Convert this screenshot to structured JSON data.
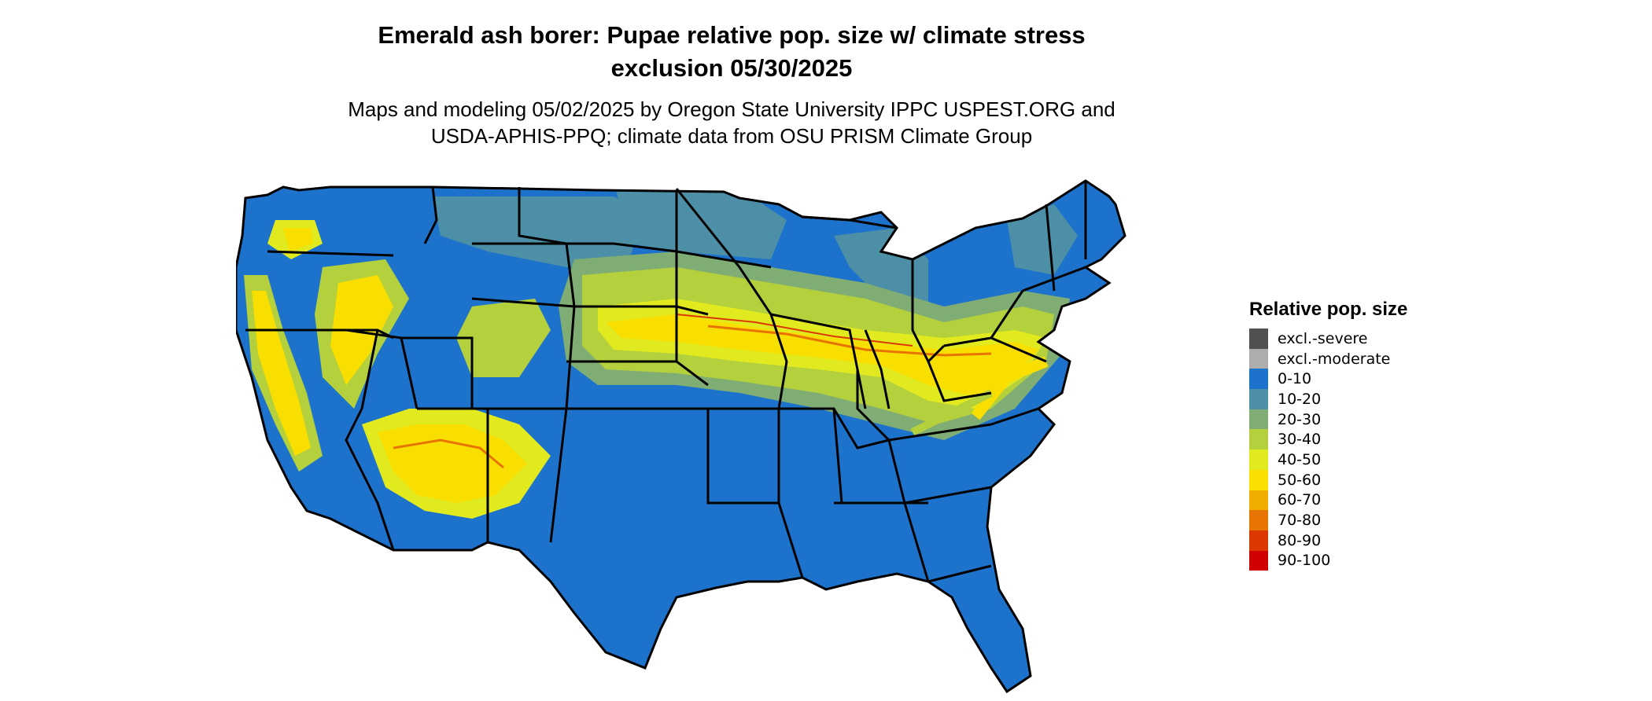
{
  "title": {
    "line1": "Emerald ash borer: Pupae relative pop. size w/ climate stress",
    "line2": "exclusion 05/30/2025"
  },
  "subtitle": {
    "line1": "Maps and modeling 05/02/2025 by Oregon State University IPPC USPEST.ORG and",
    "line2": "USDA-APHIS-PPQ; climate data from OSU PRISM Climate Group"
  },
  "legend": {
    "title": "Relative pop. size",
    "items": [
      {
        "label": "excl.-severe",
        "color": "#505050"
      },
      {
        "label": "excl.-moderate",
        "color": "#adadad"
      },
      {
        "label": "0-10",
        "color": "#1d73cc"
      },
      {
        "label": "10-20",
        "color": "#4c8fa6"
      },
      {
        "label": "20-30",
        "color": "#7fad74"
      },
      {
        "label": "30-40",
        "color": "#b4d03c"
      },
      {
        "label": "40-50",
        "color": "#e1ea1e"
      },
      {
        "label": "50-60",
        "color": "#f9df00"
      },
      {
        "label": "60-70",
        "color": "#f0ad00"
      },
      {
        "label": "70-80",
        "color": "#e87400"
      },
      {
        "label": "80-90",
        "color": "#dc3900"
      },
      {
        "label": "90-100",
        "color": "#d00000"
      }
    ]
  }
}
